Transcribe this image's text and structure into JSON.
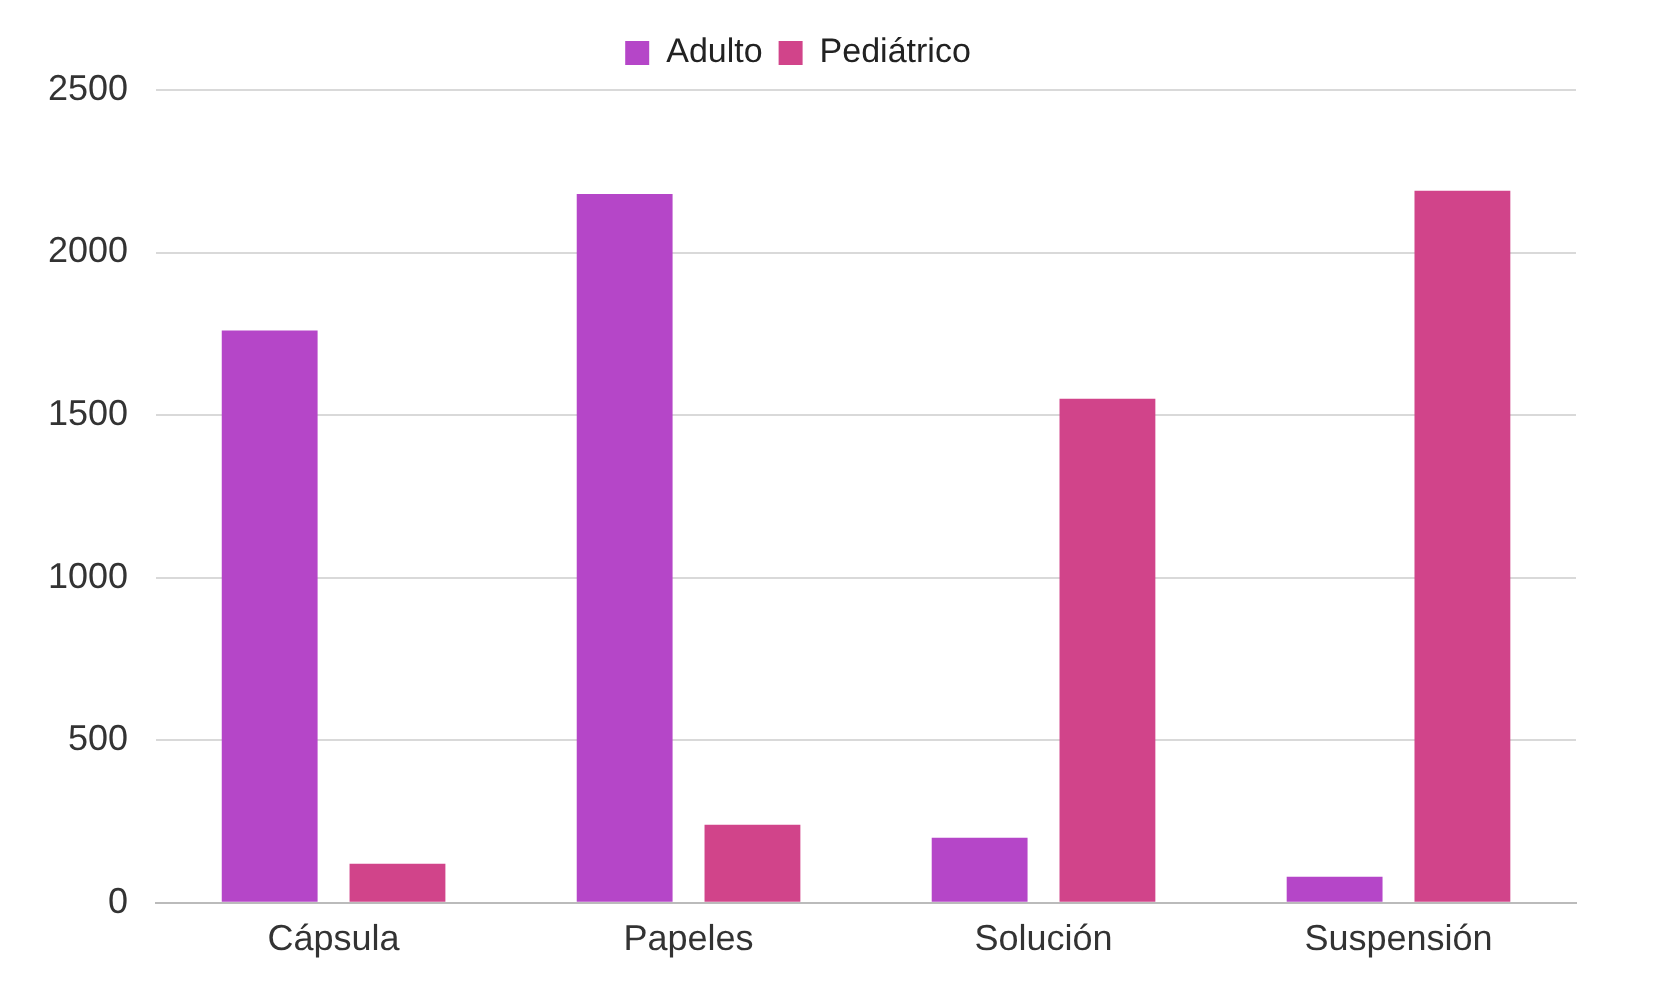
{
  "chart_data": {
    "type": "bar",
    "categories": [
      "Cápsula",
      "Papeles",
      "Solución",
      "Suspensión"
    ],
    "series": [
      {
        "name": "Adulto",
        "color": "#b546c8",
        "values": [
          1760,
          2180,
          200,
          80
        ]
      },
      {
        "name": "Pediátrico",
        "color": "#d1448a",
        "values": [
          120,
          240,
          1550,
          2190
        ]
      }
    ],
    "ylim": [
      0,
      2500
    ],
    "yticks": [
      0,
      500,
      1000,
      1500,
      2000,
      2500
    ],
    "grid": "y",
    "legend": "top"
  }
}
